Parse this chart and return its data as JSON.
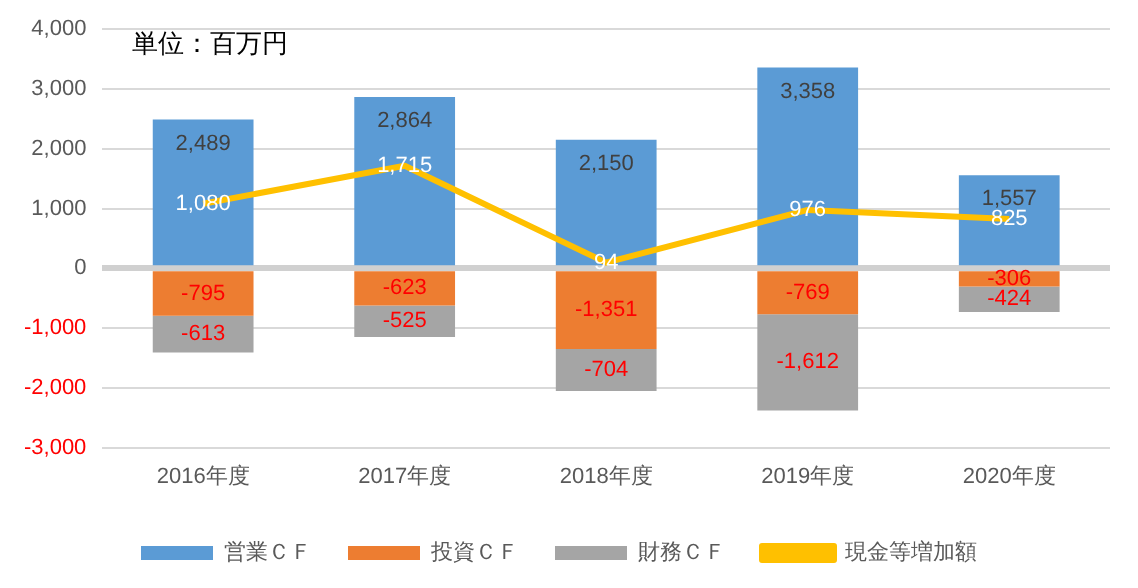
{
  "chart_data": {
    "type": "bar",
    "stacked": true,
    "categories": [
      "2016年度",
      "2017年度",
      "2018年度",
      "2019年度",
      "2020年度"
    ],
    "series": [
      {
        "name": "営業ＣＦ",
        "color": "#5b9bd5",
        "values": [
          2489,
          2864,
          2150,
          3358,
          1557
        ],
        "value_labels": [
          "2,489",
          "2,864",
          "2,150",
          "3,358",
          "1,557"
        ]
      },
      {
        "name": "投資ＣＦ",
        "color": "#ed7d31",
        "values": [
          -795,
          -623,
          -1351,
          -769,
          -306
        ],
        "value_labels": [
          "-795",
          "-623",
          "-1,351",
          "-769",
          "-306"
        ]
      },
      {
        "name": "財務ＣＦ",
        "color": "#a5a5a5",
        "values": [
          -613,
          -525,
          -704,
          -1612,
          -424
        ],
        "value_labels": [
          "-613",
          "-525",
          "-704",
          "-1,612",
          "-424"
        ]
      },
      {
        "name": "現金等増加額",
        "type": "line",
        "color": "#ffc000",
        "values": [
          1080,
          1715,
          94,
          976,
          825
        ],
        "value_labels": [
          "1,080",
          "1,715",
          "94",
          "976",
          "825"
        ]
      }
    ],
    "ylim": [
      -3000,
      4000
    ],
    "yticks": [
      {
        "value": -3000,
        "label": "-3,000"
      },
      {
        "value": -2000,
        "label": "-2,000"
      },
      {
        "value": -1000,
        "label": "-1,000"
      },
      0,
      {
        "value": 1000,
        "label": "1,000"
      },
      {
        "value": 2000,
        "label": "2,000"
      },
      {
        "value": 3000,
        "label": "3,000"
      },
      {
        "value": 4000,
        "label": "4,000"
      }
    ],
    "grid": "y",
    "legend": "bottom",
    "marker": "none",
    "annotations": [
      "単位：百万円"
    ]
  }
}
